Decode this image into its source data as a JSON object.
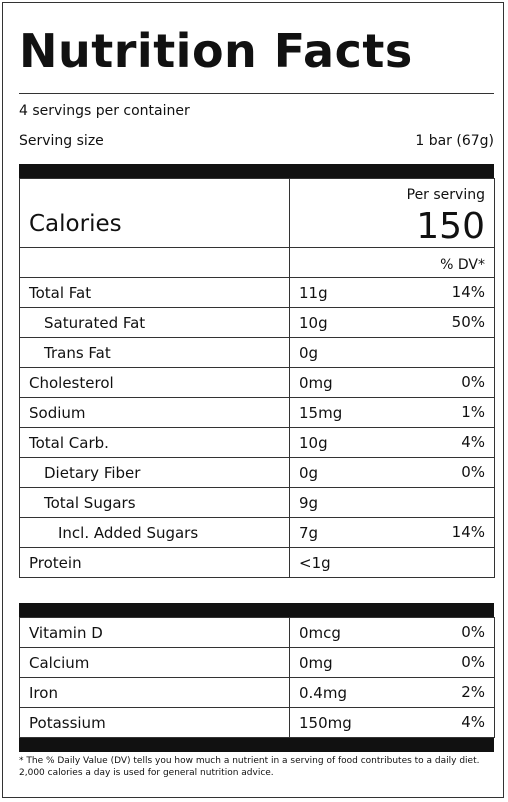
{
  "title": "Nutrition Facts",
  "servings_per_container": "4 servings per container",
  "serving_size": {
    "label": "Serving size",
    "value": "1 bar (67g)"
  },
  "calories": {
    "label": "Calories",
    "per_serving_label": "Per serving",
    "value": "150"
  },
  "dv_header": "% DV*",
  "nutrients": [
    {
      "name": "Total Fat",
      "amount": "11g",
      "dv": "14%"
    },
    {
      "name": "Saturated Fat",
      "amount": "10g",
      "dv": "50%"
    },
    {
      "name": "Trans Fat",
      "amount": "0g",
      "dv": ""
    },
    {
      "name": "Cholesterol",
      "amount": "0mg",
      "dv": "0%"
    },
    {
      "name": "Sodium",
      "amount": "15mg",
      "dv": "1%"
    },
    {
      "name": "Total Carb.",
      "amount": "10g",
      "dv": "4%"
    },
    {
      "name": "Dietary Fiber",
      "amount": "0g",
      "dv": "0%"
    },
    {
      "name": "Total Sugars",
      "amount": "9g",
      "dv": ""
    },
    {
      "name": "Incl. Added Sugars",
      "amount": "7g",
      "dv": "14%"
    },
    {
      "name": "Protein",
      "amount": "<1g",
      "dv": ""
    }
  ],
  "vitamins": [
    {
      "name": "Vitamin D",
      "amount": "0mcg",
      "dv": "0%"
    },
    {
      "name": "Calcium",
      "amount": "0mg",
      "dv": "0%"
    },
    {
      "name": "Iron",
      "amount": "0.4mg",
      "dv": "2%"
    },
    {
      "name": "Potassium",
      "amount": "150mg",
      "dv": "4%"
    }
  ],
  "footnote": "* The % Daily Value (DV) tells you how much a nutrient in a serving of food contributes to a daily diet. 2,000 calories a day is used for general nutrition advice."
}
